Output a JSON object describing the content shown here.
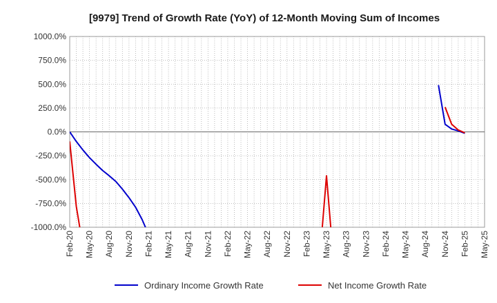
{
  "chart_data": {
    "type": "line",
    "title": "[9979]  Trend of Growth Rate (YoY) of 12-Month Moving Sum of Incomes",
    "xlabel": "",
    "ylabel": "",
    "x_start": "2020-02",
    "x_ticks": [
      "Feb-20",
      "May-20",
      "Aug-20",
      "Nov-20",
      "Feb-21",
      "May-21",
      "Aug-21",
      "Nov-21",
      "Feb-22",
      "May-22",
      "Aug-22",
      "Nov-22",
      "Feb-23",
      "May-23",
      "Aug-23",
      "Nov-23",
      "Feb-24",
      "May-24",
      "Aug-24",
      "Nov-24",
      "Feb-25",
      "May-25"
    ],
    "y_ticks": [
      "1000.0%",
      "750.0%",
      "500.0%",
      "250.0%",
      "0.0%",
      "-250.0%",
      "-500.0%",
      "-750.0%",
      "-1000.0%"
    ],
    "ylim": [
      -1000,
      1000
    ],
    "grid": true,
    "legend_position": "bottom",
    "series": [
      {
        "name": "Ordinary Income Growth Rate",
        "color": "#0000cc",
        "points": [
          {
            "x": "2020-02",
            "y": 0
          },
          {
            "x": "2020-03",
            "y": -100
          },
          {
            "x": "2020-04",
            "y": -190
          },
          {
            "x": "2020-05",
            "y": -270
          },
          {
            "x": "2020-06",
            "y": -340
          },
          {
            "x": "2020-07",
            "y": -405
          },
          {
            "x": "2020-08",
            "y": -460
          },
          {
            "x": "2020-09",
            "y": -520
          },
          {
            "x": "2020-10",
            "y": -600
          },
          {
            "x": "2020-11",
            "y": -690
          },
          {
            "x": "2020-12",
            "y": -790
          },
          {
            "x": "2021-01",
            "y": -920
          },
          {
            "x": "2021-02",
            "y": -1080
          },
          {
            "x": "2024-10",
            "y": 490
          },
          {
            "x": "2024-11",
            "y": 80
          },
          {
            "x": "2024-12",
            "y": 30
          },
          {
            "x": "2025-01",
            "y": 10
          },
          {
            "x": "2025-02",
            "y": -15
          }
        ]
      },
      {
        "name": "Net Income Growth Rate",
        "color": "#dd0000",
        "points": [
          {
            "x": "2020-02",
            "y": -100
          },
          {
            "x": "2020-03",
            "y": -780
          },
          {
            "x": "2020-04",
            "y": -1200
          },
          {
            "x": "2023-03",
            "y": null
          },
          {
            "x": "2023-04",
            "y": -1300
          },
          {
            "x": "2023-05",
            "y": -460
          },
          {
            "x": "2023-06",
            "y": -1300
          },
          {
            "x": "2024-11",
            "y": 260
          },
          {
            "x": "2024-12",
            "y": 80
          },
          {
            "x": "2025-01",
            "y": 20
          },
          {
            "x": "2025-02",
            "y": -10
          }
        ]
      }
    ]
  }
}
